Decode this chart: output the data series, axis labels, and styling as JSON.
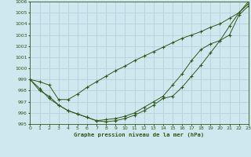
{
  "title": "Graphe pression niveau de la mer (hPa)",
  "bg_color": "#cfe8ef",
  "grid_color": "#b8d4dc",
  "line_color": "#2d5a1b",
  "xlim": [
    0,
    23
  ],
  "ylim": [
    995,
    1006
  ],
  "xticks": [
    0,
    1,
    2,
    3,
    4,
    5,
    6,
    7,
    8,
    9,
    10,
    11,
    12,
    13,
    14,
    15,
    16,
    17,
    18,
    19,
    20,
    21,
    22,
    23
  ],
  "yticks": [
    995,
    996,
    997,
    998,
    999,
    1000,
    1001,
    1002,
    1003,
    1004,
    1005,
    1006
  ],
  "series1": {
    "x": [
      0,
      1,
      2,
      3,
      4,
      5,
      6,
      7,
      8,
      9,
      10,
      11,
      12,
      13,
      14,
      15,
      16,
      17,
      18,
      19,
      20,
      21,
      22,
      23
    ],
    "y": [
      999.0,
      998.8,
      998.5,
      997.2,
      997.2,
      997.7,
      998.3,
      998.8,
      999.3,
      999.8,
      1000.2,
      1000.7,
      1001.1,
      1001.5,
      1001.9,
      1002.3,
      1002.7,
      1003.0,
      1003.3,
      1003.7,
      1004.0,
      1004.5,
      1005.0,
      1005.8
    ]
  },
  "series2": {
    "x": [
      0,
      1,
      2,
      3,
      4,
      5,
      6,
      7,
      8,
      9,
      10,
      11,
      12,
      13,
      14,
      15,
      16,
      17,
      18,
      19,
      20,
      21,
      22,
      23
    ],
    "y": [
      999.0,
      998.0,
      997.5,
      996.7,
      996.2,
      995.9,
      995.6,
      995.3,
      995.2,
      995.3,
      995.5,
      995.8,
      996.2,
      996.7,
      997.3,
      997.5,
      998.3,
      999.3,
      1000.3,
      1001.4,
      1002.5,
      1003.8,
      1005.0,
      1006.0
    ]
  },
  "series3": {
    "x": [
      0,
      1,
      2,
      3,
      4,
      5,
      6,
      7,
      8,
      9,
      10,
      11,
      12,
      13,
      14,
      15,
      16,
      17,
      18,
      19,
      20,
      21,
      22,
      23
    ],
    "y": [
      999.0,
      998.2,
      997.3,
      996.7,
      996.2,
      995.9,
      995.6,
      995.3,
      995.4,
      995.5,
      995.7,
      996.0,
      996.5,
      997.0,
      997.5,
      998.5,
      999.5,
      1000.7,
      1001.7,
      1002.2,
      1002.5,
      1003.0,
      1004.8,
      1005.6
    ]
  }
}
